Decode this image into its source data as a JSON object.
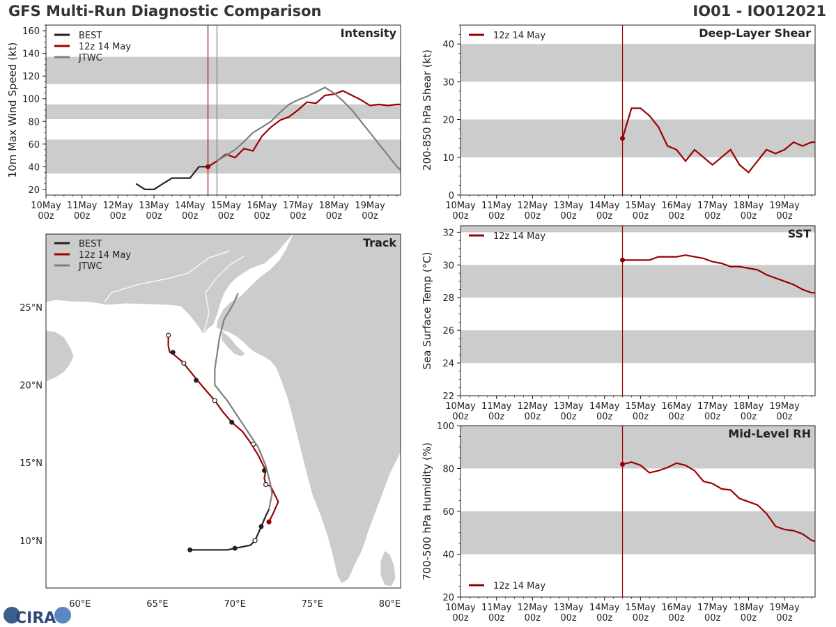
{
  "header": {
    "title": "GFS Multi-Run Diagnostic Comparison",
    "storm_id": "IO01 - IO012021"
  },
  "colors": {
    "best": "#222222",
    "gfs": "#990000",
    "jtwc": "#7f7f7f",
    "band": "#cccccc",
    "land": "#cccccc"
  },
  "time_axis": {
    "tick_labels": [
      "10May 00z",
      "11May 00z",
      "12May 00z",
      "13May 00z",
      "14May 00z",
      "15May 00z",
      "16May 00z",
      "17May 00z",
      "18May 00z",
      "19May 00z"
    ],
    "range_days": [
      0,
      9.85
    ],
    "init_day": 4.5
  },
  "chart_data": [
    {
      "id": "intensity",
      "type": "line",
      "title": "Intensity",
      "ylabel": "10m Max Wind Speed (kt)",
      "ylim": [
        15,
        165
      ],
      "yticks": [
        20,
        40,
        60,
        80,
        100,
        120,
        140,
        160
      ],
      "bands": [
        [
          34,
          64
        ],
        [
          82,
          95
        ],
        [
          113,
          137
        ]
      ],
      "vlines": [
        {
          "day": 4.5,
          "color": "#990000"
        },
        {
          "day": 4.75,
          "color": "#7f7f7f"
        }
      ],
      "legend": [
        "BEST",
        "12z 14 May",
        "JTWC"
      ],
      "series": [
        {
          "name": "BEST",
          "x": [
            2.5,
            2.75,
            3.0,
            3.25,
            3.5,
            3.75,
            4.0,
            4.25,
            4.5
          ],
          "y": [
            25,
            20,
            20,
            25,
            30,
            30,
            30,
            40,
            40
          ]
        },
        {
          "name": "12z 14 May",
          "x": [
            4.5,
            4.75,
            5.0,
            5.25,
            5.5,
            5.75,
            6.0,
            6.25,
            6.5,
            6.75,
            7.0,
            7.25,
            7.5,
            7.75,
            8.0,
            8.25,
            8.5,
            8.75,
            9.0,
            9.25,
            9.5,
            9.75,
            9.85
          ],
          "y": [
            40,
            45,
            51,
            48,
            56,
            54,
            67,
            75,
            81,
            84,
            90,
            97,
            96,
            103,
            104,
            107,
            103,
            99,
            94,
            95,
            94,
            95,
            95
          ]
        },
        {
          "name": "JTWC",
          "x": [
            4.75,
            5.0,
            5.25,
            5.5,
            5.75,
            6.0,
            6.25,
            6.5,
            6.75,
            7.0,
            7.25,
            7.5,
            7.75,
            8.0,
            8.25,
            8.5,
            8.75,
            9.0,
            9.25,
            9.5,
            9.75,
            9.85
          ],
          "y": [
            45,
            50,
            55,
            62,
            70,
            75,
            80,
            88,
            95,
            99,
            102,
            106,
            110,
            105,
            98,
            90,
            80,
            70,
            60,
            50,
            40,
            37
          ]
        }
      ]
    },
    {
      "id": "shear",
      "type": "line",
      "title": "Deep-Layer Shear",
      "ylabel": "200-850 hPa Shear (kt)",
      "ylim": [
        0,
        45
      ],
      "yticks": [
        0,
        10,
        20,
        30,
        40
      ],
      "bands": [
        [
          10,
          20
        ],
        [
          30,
          40
        ]
      ],
      "vlines": [
        {
          "day": 4.5,
          "color": "#990000"
        }
      ],
      "legend": [
        "12z 14 May"
      ],
      "series": [
        {
          "name": "12z 14 May",
          "x": [
            4.5,
            4.75,
            5.0,
            5.25,
            5.5,
            5.75,
            6.0,
            6.25,
            6.5,
            6.75,
            7.0,
            7.25,
            7.5,
            7.75,
            8.0,
            8.25,
            8.5,
            8.75,
            9.0,
            9.25,
            9.5,
            9.75,
            9.85
          ],
          "y": [
            15,
            23,
            23,
            21,
            18,
            13,
            12,
            9,
            12,
            10,
            8,
            10,
            12,
            8,
            6,
            9,
            12,
            11,
            12,
            14,
            13,
            14,
            14
          ]
        }
      ]
    },
    {
      "id": "sst",
      "type": "line",
      "title": "SST",
      "ylabel": "Sea Surface Temp (°C)",
      "ylim": [
        22,
        32.4
      ],
      "yticks": [
        22,
        24,
        26,
        28,
        30,
        32
      ],
      "bands": [
        [
          24,
          26
        ],
        [
          28,
          30
        ],
        [
          32,
          34
        ]
      ],
      "vlines": [
        {
          "day": 4.5,
          "color": "#990000"
        }
      ],
      "legend": [
        "12z 14 May"
      ],
      "series": [
        {
          "name": "12z 14 May",
          "x": [
            4.5,
            4.75,
            5.0,
            5.25,
            5.5,
            5.75,
            6.0,
            6.25,
            6.5,
            6.75,
            7.0,
            7.25,
            7.5,
            7.75,
            8.0,
            8.25,
            8.5,
            8.75,
            9.0,
            9.25,
            9.5,
            9.75,
            9.85
          ],
          "y": [
            30.3,
            30.3,
            30.3,
            30.3,
            30.5,
            30.5,
            30.5,
            30.6,
            30.5,
            30.4,
            30.2,
            30.1,
            29.9,
            29.9,
            29.8,
            29.7,
            29.4,
            29.2,
            29.0,
            28.8,
            28.5,
            28.3,
            28.3
          ]
        }
      ]
    },
    {
      "id": "rh",
      "type": "line",
      "title": "Mid-Level RH",
      "ylabel": "700-500 hPa Humidity (%)",
      "ylim": [
        20,
        100
      ],
      "yticks": [
        20,
        40,
        60,
        80,
        100
      ],
      "bands": [
        [
          40,
          60
        ],
        [
          80,
          100
        ]
      ],
      "vlines": [
        {
          "day": 4.5,
          "color": "#990000"
        }
      ],
      "legend": [
        "12z 14 May"
      ],
      "series": [
        {
          "name": "12z 14 May",
          "x": [
            4.5,
            4.75,
            5.0,
            5.25,
            5.5,
            5.75,
            6.0,
            6.25,
            6.5,
            6.75,
            7.0,
            7.25,
            7.5,
            7.75,
            8.0,
            8.25,
            8.5,
            8.75,
            9.0,
            9.25,
            9.5,
            9.75,
            9.85
          ],
          "y": [
            82,
            83,
            81.5,
            78,
            79,
            80.5,
            82.5,
            81.5,
            79,
            74,
            73,
            70.5,
            70,
            66,
            64.5,
            63,
            59,
            53,
            51.5,
            51,
            49.5,
            46.5,
            46
          ]
        }
      ]
    },
    {
      "id": "track",
      "type": "scatter",
      "title": "Track",
      "xlim": [
        57.8,
        80.7
      ],
      "ylim": [
        6.95,
        29.7
      ],
      "xticks": [
        60,
        65,
        70,
        75,
        80
      ],
      "xtick_labels": [
        "60°E",
        "65°E",
        "70°E",
        "75°E",
        "80°E"
      ],
      "yticks": [
        10,
        15,
        20,
        25
      ],
      "ytick_labels": [
        "10°N",
        "15°N",
        "20°N",
        "25°N"
      ],
      "legend": [
        "BEST",
        "12z 14 May",
        "JTWC"
      ],
      "series": [
        {
          "name": "BEST",
          "lon": [
            67.1,
            68.5,
            69.5,
            70.0,
            71.0,
            71.3,
            71.7,
            72.0,
            72.2
          ],
          "lat": [
            9.4,
            9.4,
            9.4,
            9.5,
            9.7,
            10.0,
            10.9,
            11.6,
            12.0
          ]
        },
        {
          "name": "12z 14 May",
          "lon": [
            72.2,
            72.5,
            72.8,
            72.3,
            72.0,
            71.9,
            72.0,
            71.5,
            71.0,
            70.5,
            69.8,
            69.2,
            68.7,
            68.0,
            67.5,
            66.6,
            66.0,
            65.8,
            65.7,
            65.7
          ],
          "lat": [
            11.2,
            11.8,
            12.5,
            13.5,
            13.6,
            14.0,
            14.5,
            15.5,
            16.3,
            17.0,
            17.6,
            18.3,
            19.0,
            19.8,
            20.4,
            21.5,
            22.0,
            22.1,
            22.5,
            23.2
          ],
          "filled_markers": [
            [
              72.2,
              11.2
            ],
            [
              71.9,
              14.5
            ],
            [
              69.8,
              17.6
            ],
            [
              67.5,
              20.3
            ],
            [
              66.0,
              22.1
            ]
          ],
          "open_markers": [
            [
              72.0,
              13.6
            ],
            [
              71.2,
              16.2
            ],
            [
              68.7,
              19.0
            ],
            [
              66.7,
              21.4
            ],
            [
              65.7,
              23.2
            ]
          ]
        },
        {
          "name": "JTWC",
          "lon": [
            72.2,
            72.4,
            72.3,
            72.0,
            71.5,
            70.5,
            69.5,
            68.7,
            68.7,
            69.0,
            69.3,
            69.9,
            70.2
          ],
          "lat": [
            12.0,
            13.0,
            13.6,
            14.8,
            16.0,
            17.5,
            19.0,
            20.0,
            21.0,
            23.0,
            24.2,
            25.2,
            25.9
          ]
        }
      ]
    }
  ],
  "footer": {
    "logo": "CIRA"
  }
}
